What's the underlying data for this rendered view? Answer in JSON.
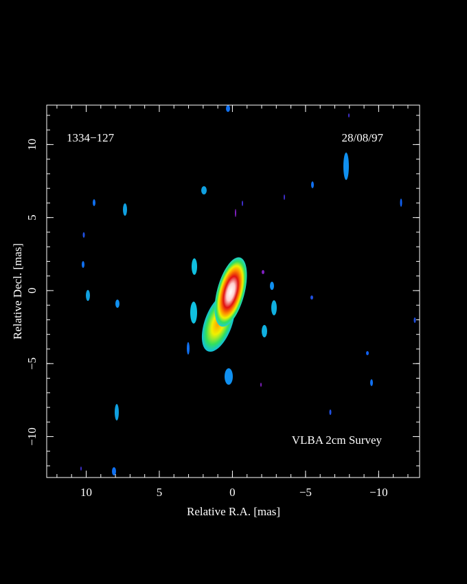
{
  "chart_data": {
    "type": "image",
    "xlabel": "Relative R.A. [mas]",
    "ylabel": "Relative Decl. [mas]",
    "xlim": [
      12.7,
      -12.8
    ],
    "ylim": [
      -12.8,
      12.7
    ],
    "xticks": [
      10,
      5,
      0,
      {
        "value": -5,
        "label": "−5"
      },
      {
        "value": -10,
        "label": "−10"
      }
    ],
    "yticks": [
      {
        "value": -10,
        "label": "−10"
      },
      {
        "value": -5,
        "label": "−5"
      },
      0,
      5,
      10
    ],
    "annotations": {
      "source": "1334−127",
      "date": "28/08/97",
      "survey": "VLBA 2cm Survey"
    }
  }
}
